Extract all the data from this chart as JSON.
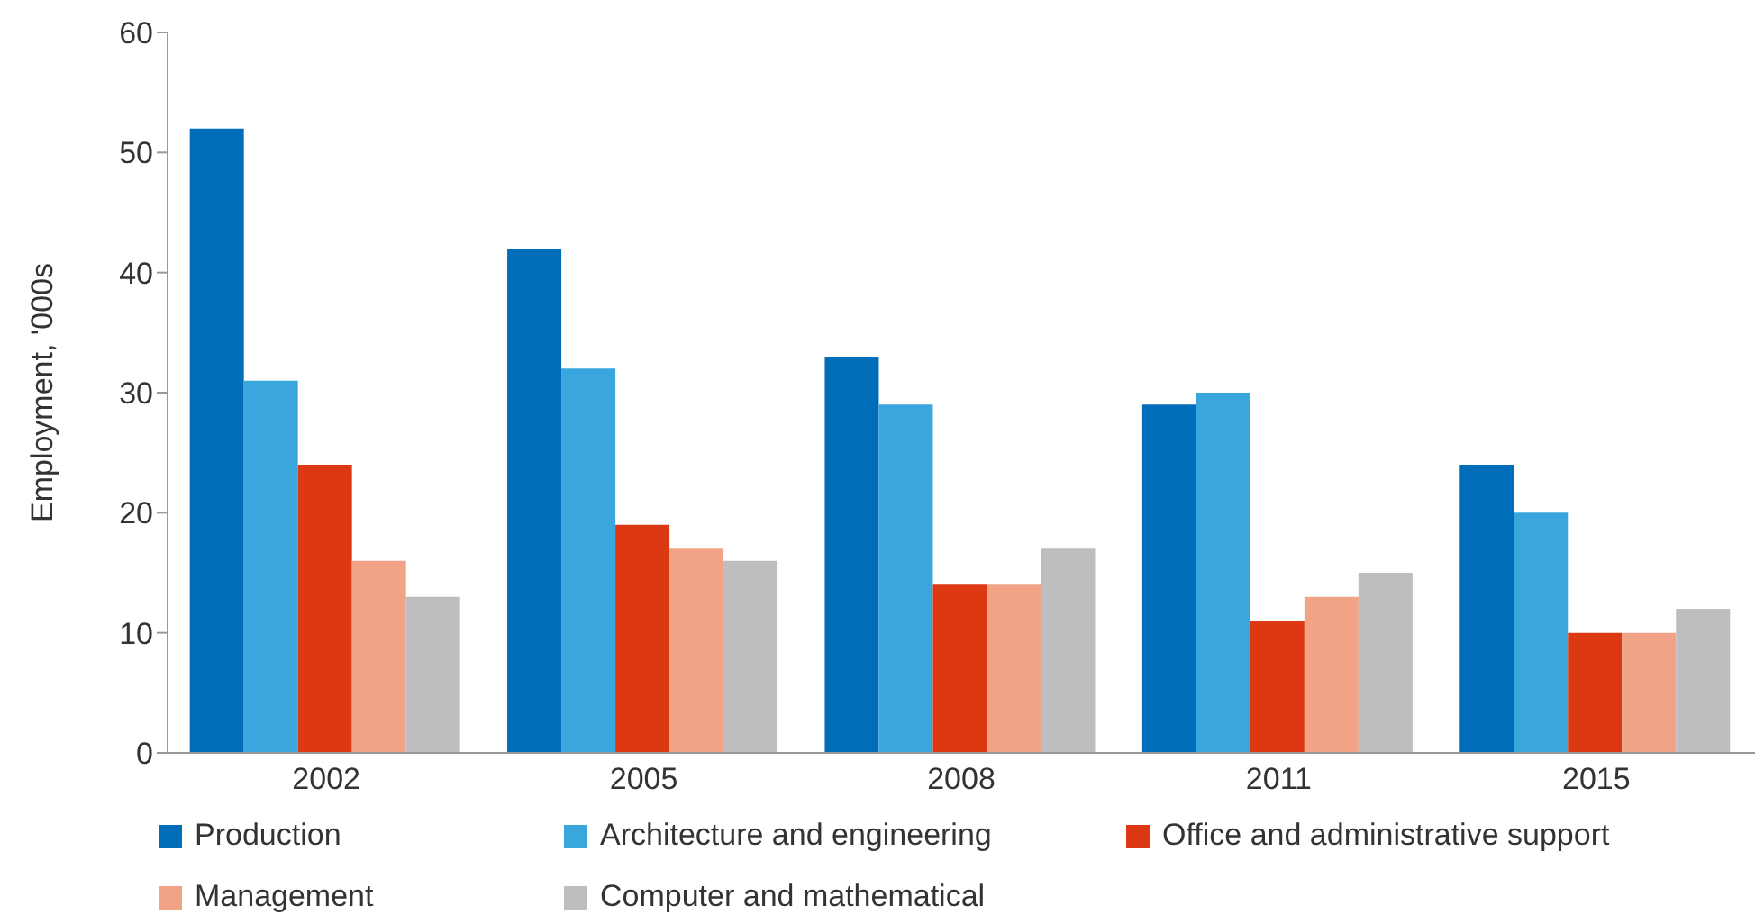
{
  "chart_data": {
    "type": "bar",
    "ylabel": "Employment, '000s",
    "categories": [
      "2002",
      "2005",
      "2008",
      "2011",
      "2015"
    ],
    "series": [
      {
        "name": "Production",
        "color": "#006db8",
        "values": [
          52,
          42,
          33,
          29,
          24
        ]
      },
      {
        "name": "Architecture and engineering",
        "color": "#3aa6de",
        "values": [
          31,
          32,
          29,
          30,
          20
        ]
      },
      {
        "name": "Office and administrative support",
        "color": "#dc3912",
        "values": [
          24,
          19,
          14,
          11,
          10
        ]
      },
      {
        "name": "Management",
        "color": "#f0a385",
        "values": [
          16,
          17,
          14,
          13,
          10
        ]
      },
      {
        "name": "Computer and mathematical",
        "color": "#bebec0",
        "values": [
          13,
          16,
          17,
          15,
          12
        ]
      }
    ],
    "ylim": [
      0,
      60
    ],
    "yticks": [
      0,
      10,
      20,
      30,
      40,
      50,
      60
    ],
    "grid": false,
    "legend": "bottom"
  }
}
